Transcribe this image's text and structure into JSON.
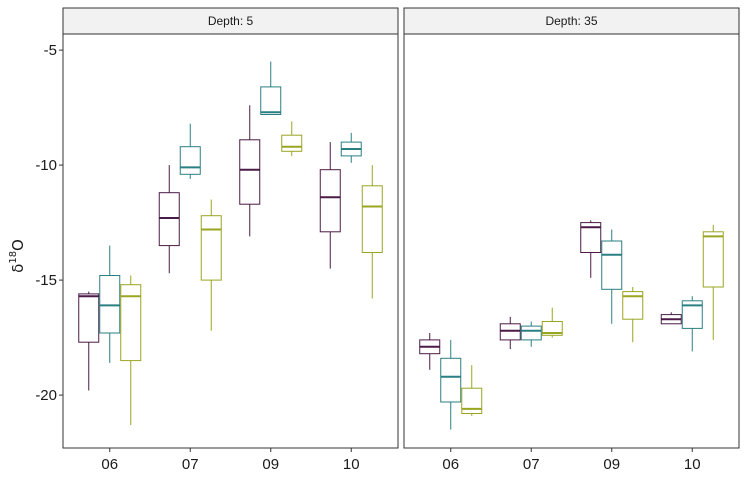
{
  "chart_data": {
    "type": "boxplot",
    "ylabel": {
      "base": "δ",
      "sup": "18",
      "tail": "O"
    },
    "ylim": [
      -22.3,
      -4.3
    ],
    "yticks": [
      -20,
      -15,
      -10,
      -5
    ],
    "categories": [
      "06",
      "07",
      "09",
      "10"
    ],
    "series_colors": [
      "#4b1a47",
      "#2a7f83",
      "#9aa521"
    ],
    "panels": [
      {
        "title": "Depth: 5",
        "groups": [
          {
            "category": "06",
            "boxes": [
              {
                "min": -19.8,
                "q1": -17.7,
                "median": -15.7,
                "q3": -15.6,
                "max": -15.5
              },
              {
                "min": -18.6,
                "q1": -17.3,
                "median": -16.1,
                "q3": -14.8,
                "max": -13.5
              },
              {
                "min": -21.3,
                "q1": -18.5,
                "median": -15.7,
                "q3": -15.2,
                "max": -14.8
              }
            ]
          },
          {
            "category": "07",
            "boxes": [
              {
                "min": -14.7,
                "q1": -13.5,
                "median": -12.3,
                "q3": -11.2,
                "max": -10.0
              },
              {
                "min": -10.6,
                "q1": -10.4,
                "median": -10.1,
                "q3": -9.2,
                "max": -8.2
              },
              {
                "min": -17.2,
                "q1": -15.0,
                "median": -12.8,
                "q3": -12.2,
                "max": -11.5
              }
            ]
          },
          {
            "category": "09",
            "boxes": [
              {
                "min": -13.1,
                "q1": -11.7,
                "median": -10.2,
                "q3": -8.9,
                "max": -7.4
              },
              {
                "min": -7.8,
                "q1": -7.8,
                "median": -7.7,
                "q3": -6.6,
                "max": -5.5
              },
              {
                "min": -9.6,
                "q1": -9.4,
                "median": -9.2,
                "q3": -8.7,
                "max": -8.1
              }
            ]
          },
          {
            "category": "10",
            "boxes": [
              {
                "min": -14.5,
                "q1": -12.9,
                "median": -11.4,
                "q3": -10.2,
                "max": -9.0
              },
              {
                "min": -9.9,
                "q1": -9.6,
                "median": -9.3,
                "q3": -9.0,
                "max": -8.6
              },
              {
                "min": -15.8,
                "q1": -13.8,
                "median": -11.8,
                "q3": -10.9,
                "max": -10.0
              }
            ]
          }
        ]
      },
      {
        "title": "Depth: 35",
        "groups": [
          {
            "category": "06",
            "boxes": [
              {
                "min": -18.9,
                "q1": -18.2,
                "median": -17.9,
                "q3": -17.6,
                "max": -17.3
              },
              {
                "min": -21.5,
                "q1": -20.3,
                "median": -19.2,
                "q3": -18.4,
                "max": -17.6
              },
              {
                "min": -20.9,
                "q1": -20.8,
                "median": -20.6,
                "q3": -19.7,
                "max": -18.7
              }
            ]
          },
          {
            "category": "07",
            "boxes": [
              {
                "min": -18.0,
                "q1": -17.6,
                "median": -17.2,
                "q3": -16.9,
                "max": -16.6
              },
              {
                "min": -17.9,
                "q1": -17.6,
                "median": -17.2,
                "q3": -17.0,
                "max": -16.8
              },
              {
                "min": -17.5,
                "q1": -17.4,
                "median": -17.3,
                "q3": -16.8,
                "max": -16.2
              }
            ]
          },
          {
            "category": "09",
            "boxes": [
              {
                "min": -14.9,
                "q1": -13.8,
                "median": -12.7,
                "q3": -12.5,
                "max": -12.4
              },
              {
                "min": -16.9,
                "q1": -15.4,
                "median": -13.9,
                "q3": -13.3,
                "max": -12.8
              },
              {
                "min": -17.7,
                "q1": -16.7,
                "median": -15.7,
                "q3": -15.5,
                "max": -15.3
              }
            ]
          },
          {
            "category": "10",
            "boxes": [
              {
                "min": -16.9,
                "q1": -16.9,
                "median": -16.7,
                "q3": -16.5,
                "max": -16.4
              },
              {
                "min": -18.1,
                "q1": -17.1,
                "median": -16.1,
                "q3": -15.9,
                "max": -15.7
              },
              {
                "min": -17.6,
                "q1": -15.3,
                "median": -13.1,
                "q3": -12.9,
                "max": -12.6
              }
            ]
          }
        ]
      }
    ]
  }
}
